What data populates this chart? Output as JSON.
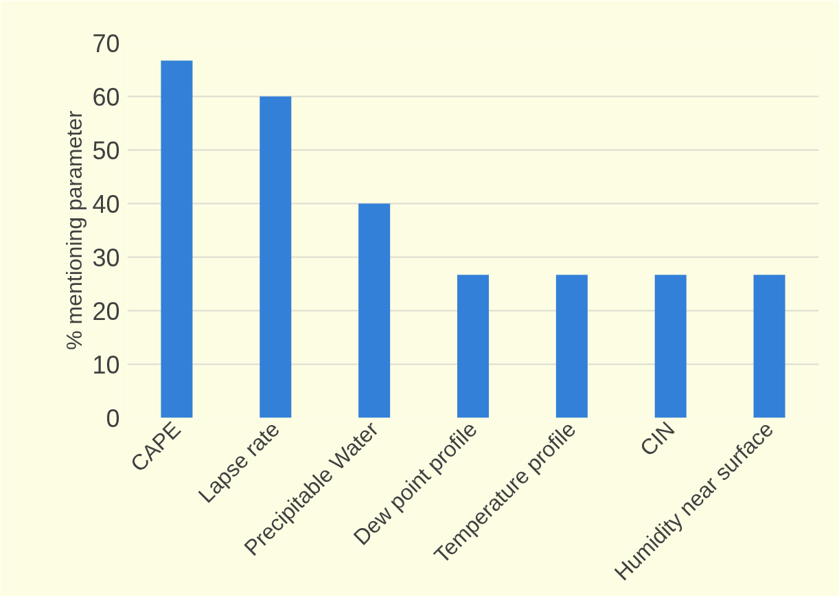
{
  "chart_data": {
    "type": "bar",
    "ylabel": "% mentioning parameter",
    "categories": [
      "CAPE",
      "Lapse rate",
      "Precipitable Water",
      "Dew point profile",
      "Temperature profile",
      "CIN",
      "Humidity near surface"
    ],
    "values": [
      66.7,
      60,
      40,
      26.7,
      26.7,
      26.7,
      26.7
    ],
    "color": "#3380d8",
    "ylim": [
      0,
      70
    ],
    "yticks": [
      0,
      10,
      20,
      30,
      40,
      50,
      60,
      70
    ],
    "grid": "y"
  }
}
